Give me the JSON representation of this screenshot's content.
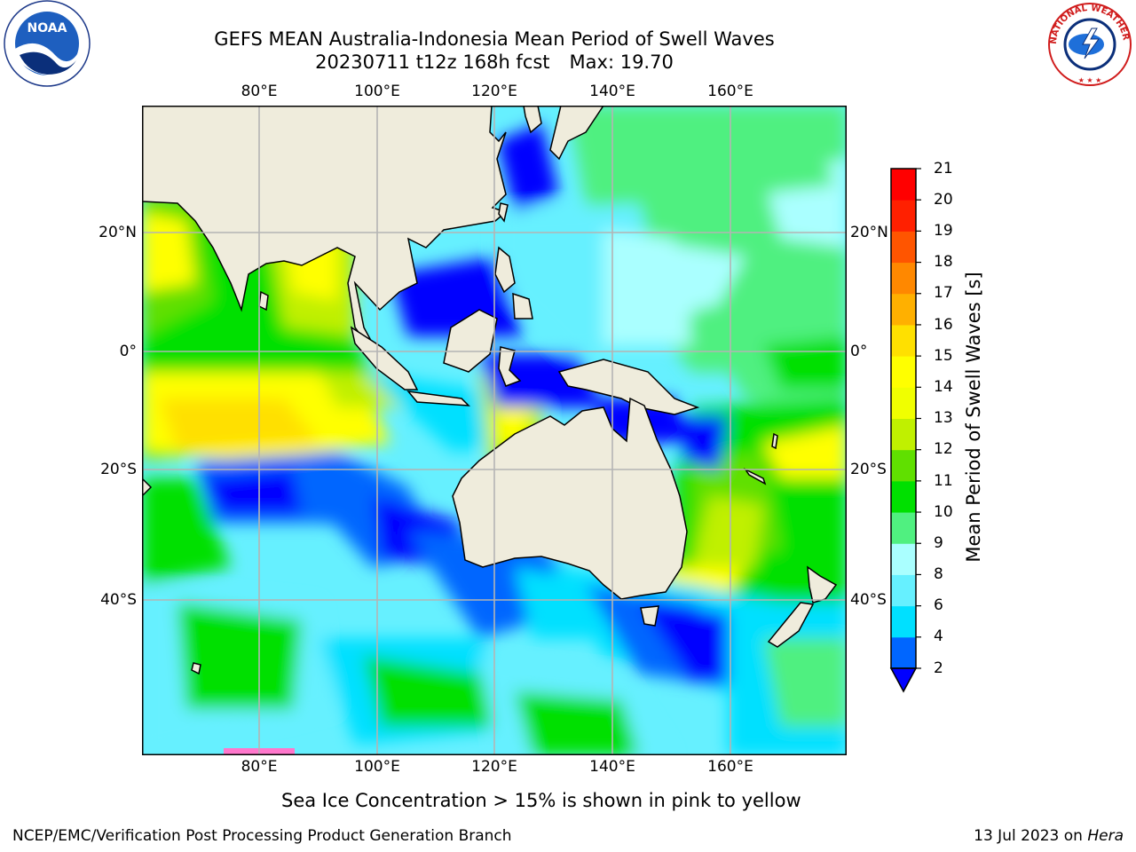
{
  "header": {
    "title_line1": "GEFS MEAN Australia-Indonesia Mean Period of Swell Waves",
    "title_line2_run": "20230711 t12z 168h fcst",
    "title_line2_max": "Max: 19.70"
  },
  "logos": {
    "left": {
      "name": "noaa-logo",
      "text": "NOAA"
    },
    "right": {
      "name": "nws-logo",
      "text": "NATIONAL WEATHER SERVICE"
    }
  },
  "map": {
    "lon_labels": [
      "80°E",
      "100°E",
      "120°E",
      "140°E",
      "160°E"
    ],
    "lat_labels": [
      "20°N",
      "0°",
      "20°S",
      "40°S"
    ],
    "colors": {
      "land": "#efecdc",
      "grid": "#b4b4b4",
      "coast": "#000000"
    }
  },
  "colorbar": {
    "label": "Mean Period of Swell Waves [s]",
    "ticks": [
      "2",
      "4",
      "6",
      "8",
      "9",
      "10",
      "11",
      "12",
      "13",
      "14",
      "15",
      "16",
      "17",
      "18",
      "19",
      "20",
      "21"
    ],
    "colors": [
      "#0000ff",
      "#0066ff",
      "#00e0ff",
      "#66f0ff",
      "#aaffff",
      "#50f080",
      "#00e000",
      "#60e000",
      "#c0f000",
      "#f0ff00",
      "#ffff00",
      "#ffe000",
      "#ffb000",
      "#ff8800",
      "#ff5500",
      "#ff2000",
      "#ff0000"
    ]
  },
  "footer": {
    "note": "Sea Ice Concentration > 15% is shown in pink to yellow",
    "left": "NCEP/EMC/Verification Post Processing Product Generation Branch",
    "right_date": "13 Jul 2023 on",
    "right_host": "Hera"
  }
}
